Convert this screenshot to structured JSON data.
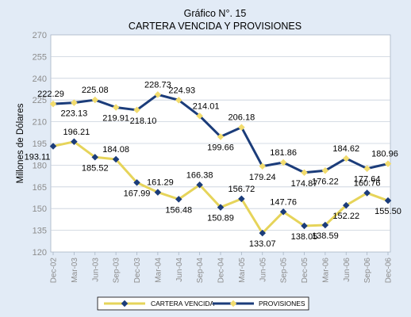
{
  "chart_data": {
    "type": "line",
    "title": "Gráfico N°. 15",
    "subtitle": "CARTERA VENCIDA Y PROVISIONES",
    "ylabel": "Millones de Dólares",
    "xlabel": "",
    "ylim": [
      120,
      270
    ],
    "yticks": [
      120,
      135,
      150,
      165,
      180,
      195,
      210,
      225,
      240,
      255,
      270
    ],
    "grid": true,
    "legend_position": "bottom",
    "categories": [
      "Dec-02",
      "Mar-03",
      "Jun-03",
      "Sep-03",
      "Dec-03",
      "Mar-04",
      "Jun-04",
      "Sep-04",
      "Dec-04",
      "Mar-05",
      "Jun-05",
      "Sep-05",
      "Dec-05",
      "Mar-06",
      "Jun-06",
      "Sep-06",
      "Dec-06"
    ],
    "series": [
      {
        "name": "CARTERA VENCIDA",
        "color": "#e6d45a",
        "marker_color": "#1b3c7a",
        "values": [
          193.11,
          196.21,
          185.52,
          184.08,
          167.99,
          161.29,
          156.48,
          166.38,
          150.89,
          156.72,
          133.07,
          147.76,
          138.05,
          138.59,
          152.22,
          160.76,
          155.5
        ],
        "labels": [
          "193.11",
          "196.21",
          "185.52",
          "184.08",
          "167.99",
          "161.29",
          "156.48",
          "166.38",
          "150.89",
          "156.72",
          "133.07",
          "147.76",
          "138.05",
          "138.59",
          "152.22",
          "160.76",
          "155.50"
        ]
      },
      {
        "name": "PROVISIONES",
        "color": "#1b3c7a",
        "marker_color": "#f2dc6e",
        "values": [
          222.29,
          223.13,
          225.08,
          219.91,
          218.1,
          228.73,
          224.93,
          214.01,
          199.66,
          206.18,
          179.24,
          181.86,
          174.87,
          176.22,
          184.62,
          177.64,
          180.96
        ],
        "labels": [
          "222.29",
          "223.13",
          "225.08",
          "219.91",
          "218.10",
          "228.73",
          "224.93",
          "214.01",
          "199.66",
          "206.18",
          "179.24",
          "181.86",
          "174.87",
          "176.22",
          "184.62",
          "177.64",
          "180.96"
        ]
      }
    ]
  }
}
